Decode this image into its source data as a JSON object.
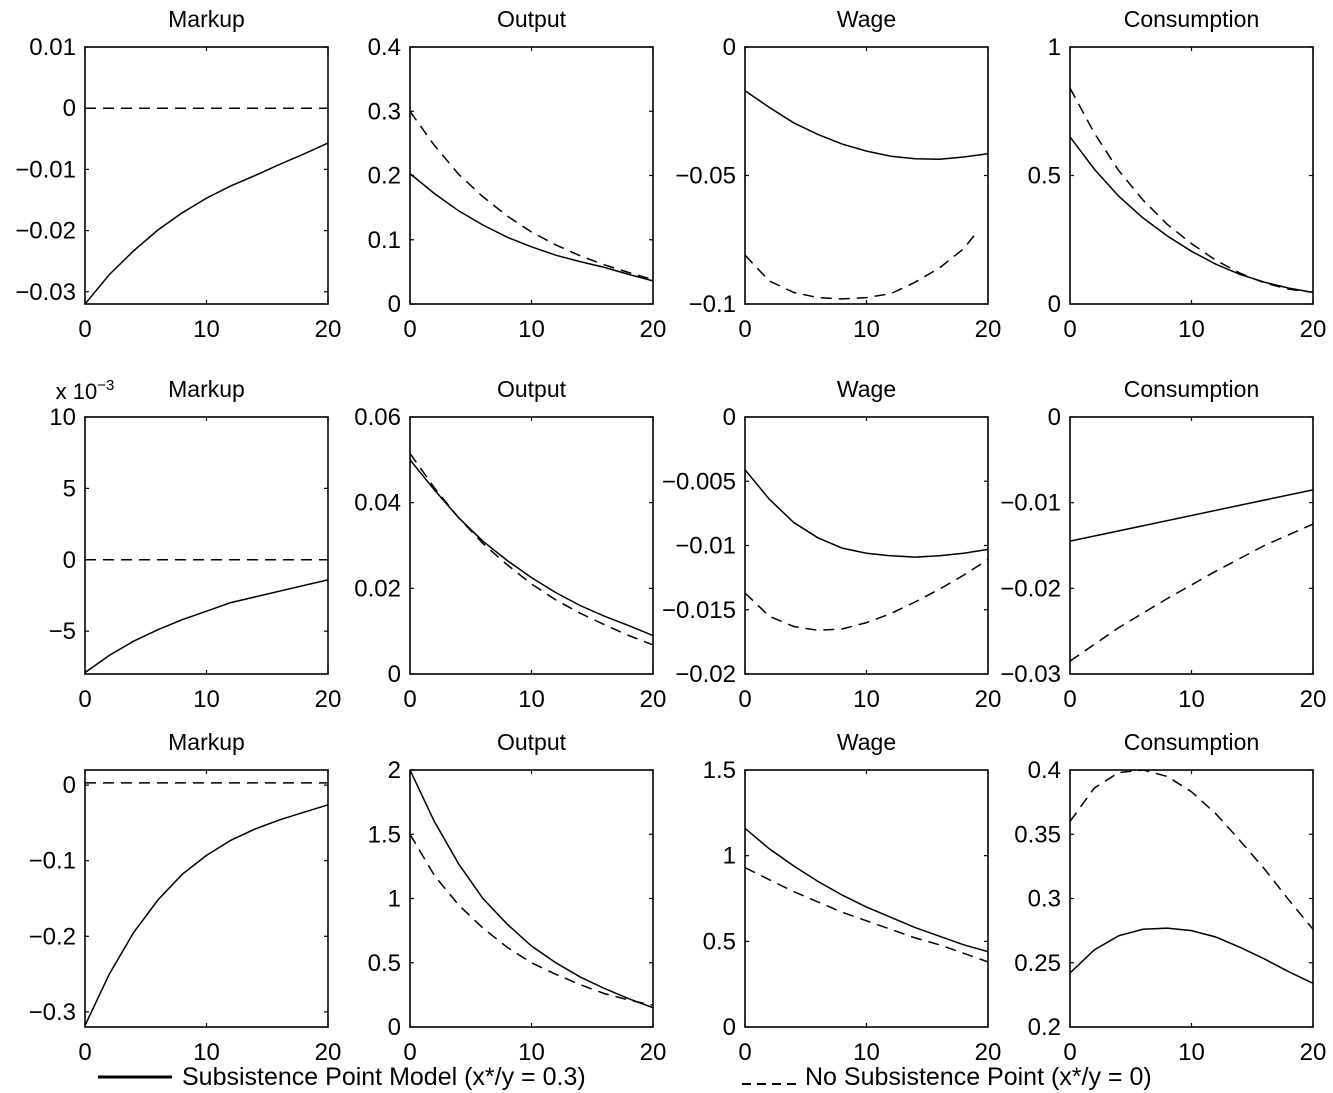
{
  "figure": {
    "legend": [
      {
        "key": "subsistence",
        "label": "Subsistence Point Model (x*/y = 0.3)",
        "style": "solid"
      },
      {
        "key": "no_subsistence",
        "label": "No Subsistence Point (x*/y = 0)",
        "style": "dashed"
      }
    ],
    "colors": {
      "line": "#000000",
      "background": "#ffffff"
    }
  },
  "chart_data": [
    {
      "type": "line",
      "title": "Markup",
      "xlim": [
        0,
        20
      ],
      "ylim": [
        -0.032,
        0.01
      ],
      "xticks": [
        0,
        10,
        20
      ],
      "yticks": [
        0.01,
        0,
        -0.01,
        -0.02,
        -0.03
      ],
      "yticklabels": [
        "0.01",
        "0",
        "−0.01",
        "−0.02",
        "−0.03"
      ],
      "series": [
        {
          "key": "subsistence",
          "style": "solid",
          "x": [
            0,
            2,
            4,
            6,
            8,
            10,
            12,
            14,
            16,
            18,
            20
          ],
          "y": [
            -0.032,
            -0.0272,
            -0.0233,
            -0.0199,
            -0.0171,
            -0.0147,
            -0.0127,
            -0.011,
            -0.0092,
            -0.0075,
            -0.0057
          ]
        },
        {
          "key": "no_subsistence",
          "style": "dashed",
          "x": [
            0,
            20
          ],
          "y": [
            0,
            0
          ]
        }
      ]
    },
    {
      "type": "line",
      "title": "Output",
      "xlim": [
        0,
        20
      ],
      "ylim": [
        0,
        0.4
      ],
      "xticks": [
        0,
        10,
        20
      ],
      "yticks": [
        0.4,
        0.3,
        0.2,
        0.1,
        0
      ],
      "yticklabels": [
        "0.4",
        "0.3",
        "0.2",
        "0.1",
        "0"
      ],
      "series": [
        {
          "key": "subsistence",
          "style": "solid",
          "x": [
            0,
            2,
            4,
            6,
            8,
            10,
            12,
            14,
            16,
            18,
            20
          ],
          "y": [
            0.203,
            0.172,
            0.145,
            0.123,
            0.104,
            0.089,
            0.076,
            0.066,
            0.057,
            0.046,
            0.036
          ]
        },
        {
          "key": "no_subsistence",
          "style": "dashed",
          "x": [
            0,
            2,
            4,
            6,
            8,
            10,
            12,
            14,
            16,
            18,
            20
          ],
          "y": [
            0.3,
            0.247,
            0.202,
            0.167,
            0.137,
            0.112,
            0.092,
            0.075,
            0.061,
            0.049,
            0.038
          ]
        }
      ]
    },
    {
      "type": "line",
      "title": "Wage",
      "xlim": [
        0,
        20
      ],
      "ylim": [
        -0.1,
        0
      ],
      "xticks": [
        0,
        10,
        20
      ],
      "yticks": [
        0,
        -0.05,
        -0.1
      ],
      "yticklabels": [
        "0",
        "−0.05",
        "−0.1"
      ],
      "series": [
        {
          "key": "subsistence",
          "style": "solid",
          "x": [
            0,
            2,
            4,
            6,
            8,
            10,
            12,
            14,
            16,
            18,
            20
          ],
          "y": [
            -0.017,
            -0.0235,
            -0.0295,
            -0.034,
            -0.0378,
            -0.0405,
            -0.0425,
            -0.0435,
            -0.0437,
            -0.0428,
            -0.0415
          ]
        },
        {
          "key": "no_subsistence",
          "style": "dashed",
          "x": [
            0,
            2,
            4,
            6,
            8,
            10,
            12,
            14,
            16,
            18,
            19
          ],
          "y": [
            -0.081,
            -0.091,
            -0.0955,
            -0.0975,
            -0.098,
            -0.0975,
            -0.096,
            -0.0915,
            -0.086,
            -0.0785,
            -0.0725
          ]
        }
      ]
    },
    {
      "type": "line",
      "title": "Consumption",
      "xlim": [
        0,
        20
      ],
      "ylim": [
        0,
        1
      ],
      "xticks": [
        0,
        10,
        20
      ],
      "yticks": [
        1,
        0.5,
        0
      ],
      "yticklabels": [
        "1",
        "0.5",
        "0"
      ],
      "series": [
        {
          "key": "subsistence",
          "style": "solid",
          "x": [
            0,
            2,
            4,
            6,
            8,
            10,
            12,
            14,
            16,
            18,
            20
          ],
          "y": [
            0.65,
            0.525,
            0.42,
            0.335,
            0.265,
            0.205,
            0.155,
            0.115,
            0.085,
            0.062,
            0.045
          ]
        },
        {
          "key": "no_subsistence",
          "style": "dashed",
          "x": [
            0,
            2,
            4,
            6,
            8,
            10,
            12,
            14,
            16,
            18,
            20
          ],
          "y": [
            0.84,
            0.665,
            0.52,
            0.405,
            0.31,
            0.235,
            0.17,
            0.12,
            0.082,
            0.058,
            0.045
          ]
        }
      ]
    },
    {
      "type": "line",
      "title": "Markup",
      "xlim": [
        0,
        20
      ],
      "ylim": [
        -8,
        10
      ],
      "scale_label": "x 10^−3",
      "xticks": [
        0,
        10,
        20
      ],
      "yticks": [
        10,
        5,
        0,
        -5
      ],
      "yticklabels": [
        "10",
        "5",
        "0",
        "−5"
      ],
      "series": [
        {
          "key": "subsistence",
          "style": "solid",
          "x": [
            0,
            2,
            4,
            6,
            8,
            10,
            12,
            14,
            16,
            18,
            20
          ],
          "y": [
            -7.9,
            -6.7,
            -5.7,
            -4.9,
            -4.2,
            -3.6,
            -3.0,
            -2.6,
            -2.2,
            -1.8,
            -1.4
          ]
        },
        {
          "key": "no_subsistence",
          "style": "dashed",
          "x": [
            0,
            20
          ],
          "y": [
            0,
            0
          ]
        }
      ]
    },
    {
      "type": "line",
      "title": "Output",
      "xlim": [
        0,
        20
      ],
      "ylim": [
        0,
        0.06
      ],
      "xticks": [
        0,
        10,
        20
      ],
      "yticks": [
        0.06,
        0.04,
        0.02,
        0
      ],
      "yticklabels": [
        "0.06",
        "0.04",
        "0.02",
        "0"
      ],
      "series": [
        {
          "key": "subsistence",
          "style": "solid",
          "x": [
            0,
            2,
            4,
            6,
            8,
            10,
            12,
            14,
            16,
            18,
            20
          ],
          "y": [
            0.05,
            0.043,
            0.0365,
            0.031,
            0.0265,
            0.0225,
            0.019,
            0.016,
            0.0135,
            0.0113,
            0.009
          ]
        },
        {
          "key": "no_subsistence",
          "style": "dashed",
          "x": [
            0,
            2,
            4,
            6,
            8,
            10,
            12,
            14,
            16,
            18,
            20
          ],
          "y": [
            0.0515,
            0.0435,
            0.0365,
            0.0305,
            0.0255,
            0.021,
            0.0173,
            0.0142,
            0.0115,
            0.009,
            0.0068
          ]
        }
      ]
    },
    {
      "type": "line",
      "title": "Wage",
      "xlim": [
        0,
        20
      ],
      "ylim": [
        -0.02,
        0
      ],
      "xticks": [
        0,
        10,
        20
      ],
      "yticks": [
        0,
        -0.005,
        -0.01,
        -0.015,
        -0.02
      ],
      "yticklabels": [
        "0",
        "−0.005",
        "−0.01",
        "−0.015",
        "−0.02"
      ],
      "series": [
        {
          "key": "subsistence",
          "style": "solid",
          "x": [
            0,
            2,
            4,
            6,
            8,
            10,
            12,
            14,
            16,
            18,
            20
          ],
          "y": [
            -0.0041,
            -0.0064,
            -0.0082,
            -0.0094,
            -0.0102,
            -0.0106,
            -0.0108,
            -0.0109,
            -0.0108,
            -0.0106,
            -0.0103
          ]
        },
        {
          "key": "no_subsistence",
          "style": "dashed",
          "x": [
            0,
            2,
            4,
            6,
            8,
            10,
            12,
            14,
            16,
            18,
            20
          ],
          "y": [
            -0.0137,
            -0.0155,
            -0.0163,
            -0.0166,
            -0.0165,
            -0.016,
            -0.0153,
            -0.0144,
            -0.0134,
            -0.0123,
            -0.0111
          ]
        }
      ]
    },
    {
      "type": "line",
      "title": "Consumption",
      "xlim": [
        0,
        20
      ],
      "ylim": [
        -0.03,
        0
      ],
      "xticks": [
        0,
        10,
        20
      ],
      "yticks": [
        0,
        -0.01,
        -0.02,
        -0.03
      ],
      "yticklabels": [
        "0",
        "−0.01",
        "−0.02",
        "−0.03"
      ],
      "series": [
        {
          "key": "subsistence",
          "style": "solid",
          "x": [
            0,
            20
          ],
          "y": [
            -0.0145,
            -0.0085
          ]
        },
        {
          "key": "no_subsistence",
          "style": "dashed",
          "x": [
            0,
            4,
            8,
            12,
            16,
            20
          ],
          "y": [
            -0.0285,
            -0.0246,
            -0.0212,
            -0.018,
            -0.015,
            -0.0125
          ]
        }
      ]
    },
    {
      "type": "line",
      "title": "Markup",
      "xlim": [
        0,
        20
      ],
      "ylim": [
        -0.32,
        0.02
      ],
      "xticks": [
        0,
        10,
        20
      ],
      "yticks": [
        0,
        -0.1,
        -0.2,
        -0.3
      ],
      "yticklabels": [
        "0",
        "−0.1",
        "−0.2",
        "−0.3"
      ],
      "series": [
        {
          "key": "subsistence",
          "style": "solid",
          "x": [
            0,
            2,
            4,
            6,
            8,
            10,
            12,
            14,
            16,
            18,
            20
          ],
          "y": [
            -0.318,
            -0.25,
            -0.195,
            -0.152,
            -0.118,
            -0.093,
            -0.073,
            -0.058,
            -0.046,
            -0.036,
            -0.026
          ]
        },
        {
          "key": "no_subsistence",
          "style": "dashed",
          "x": [
            0,
            20
          ],
          "y": [
            0.003,
            0.003
          ]
        }
      ]
    },
    {
      "type": "line",
      "title": "Output",
      "xlim": [
        0,
        20
      ],
      "ylim": [
        0,
        2
      ],
      "xticks": [
        0,
        10,
        20
      ],
      "yticks": [
        2,
        1.5,
        1,
        0.5,
        0
      ],
      "yticklabels": [
        "2",
        "1.5",
        "1",
        "0.5",
        "0"
      ],
      "series": [
        {
          "key": "subsistence",
          "style": "solid",
          "x": [
            0,
            2,
            4,
            6,
            8,
            10,
            12,
            14,
            16,
            18,
            20
          ],
          "y": [
            2.0,
            1.6,
            1.27,
            1.0,
            0.8,
            0.63,
            0.5,
            0.39,
            0.3,
            0.22,
            0.15
          ]
        },
        {
          "key": "no_subsistence",
          "style": "dashed",
          "x": [
            0,
            2,
            4,
            6,
            8,
            10,
            12,
            14,
            16,
            18,
            20
          ],
          "y": [
            1.5,
            1.18,
            0.95,
            0.77,
            0.62,
            0.5,
            0.41,
            0.33,
            0.26,
            0.21,
            0.17
          ]
        }
      ]
    },
    {
      "type": "line",
      "title": "Wage",
      "xlim": [
        0,
        20
      ],
      "ylim": [
        0,
        1.5
      ],
      "xticks": [
        0,
        10,
        20
      ],
      "yticks": [
        1.5,
        1,
        0.5,
        0
      ],
      "yticklabels": [
        "1.5",
        "1",
        "0.5",
        "0"
      ],
      "series": [
        {
          "key": "subsistence",
          "style": "solid",
          "x": [
            0,
            2,
            4,
            6,
            8,
            10,
            12,
            14,
            16,
            18,
            20
          ],
          "y": [
            1.16,
            1.04,
            0.94,
            0.85,
            0.77,
            0.7,
            0.64,
            0.58,
            0.53,
            0.48,
            0.44
          ]
        },
        {
          "key": "no_subsistence",
          "style": "dashed",
          "x": [
            0,
            2,
            4,
            6,
            8,
            10,
            12,
            14,
            16,
            18,
            20
          ],
          "y": [
            0.93,
            0.86,
            0.79,
            0.73,
            0.67,
            0.62,
            0.57,
            0.52,
            0.48,
            0.43,
            0.38
          ]
        }
      ]
    },
    {
      "type": "line",
      "title": "Consumption",
      "xlim": [
        0,
        20
      ],
      "ylim": [
        0.2,
        0.4
      ],
      "xticks": [
        0,
        10,
        20
      ],
      "yticks": [
        0.4,
        0.35,
        0.3,
        0.25,
        0.2
      ],
      "yticklabels": [
        "0.4",
        "0.35",
        "0.3",
        "0.25",
        "0.2"
      ],
      "series": [
        {
          "key": "subsistence",
          "style": "solid",
          "x": [
            0,
            2,
            4,
            6,
            8,
            10,
            12,
            14,
            16,
            18,
            20
          ],
          "y": [
            0.242,
            0.26,
            0.271,
            0.276,
            0.277,
            0.275,
            0.27,
            0.262,
            0.253,
            0.243,
            0.234
          ]
        },
        {
          "key": "no_subsistence",
          "style": "dashed",
          "x": [
            0,
            2,
            4,
            6,
            8,
            10,
            12,
            14,
            16,
            18,
            20
          ],
          "y": [
            0.36,
            0.386,
            0.398,
            0.4,
            0.395,
            0.383,
            0.366,
            0.345,
            0.323,
            0.299,
            0.276
          ]
        }
      ]
    }
  ]
}
